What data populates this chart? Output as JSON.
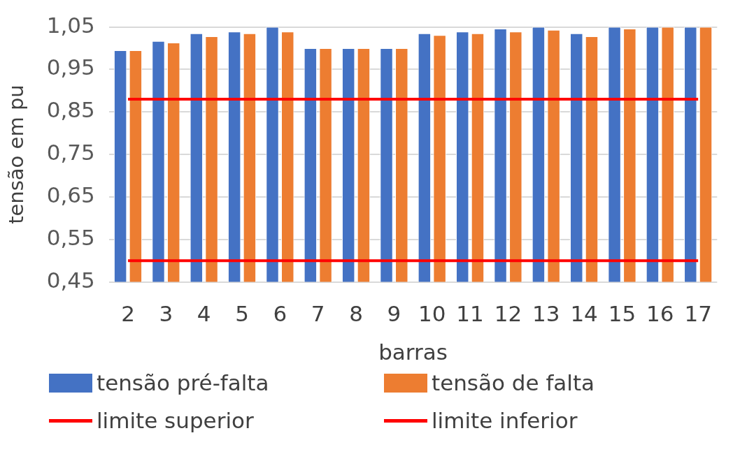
{
  "chart_data": {
    "type": "bar",
    "xlabel": "barras",
    "ylabel": "tensão em pu",
    "categories": [
      "2",
      "3",
      "4",
      "5",
      "6",
      "7",
      "8",
      "9",
      "10",
      "11",
      "12",
      "13",
      "14",
      "15",
      "16",
      "17"
    ],
    "series": [
      {
        "name": "tensão pré-falta",
        "color": "#4472c4",
        "values": [
          0.995,
          1.017,
          1.035,
          1.039,
          1.05,
          1.0,
          1.0,
          1.0,
          1.035,
          1.039,
          1.046,
          1.05,
          1.035,
          1.05,
          1.05,
          1.05
        ]
      },
      {
        "name": "tensão de falta",
        "color": "#ed7d31",
        "values": [
          0.995,
          1.013,
          1.028,
          1.035,
          1.039,
          1.0,
          1.0,
          1.0,
          1.031,
          1.035,
          1.039,
          1.043,
          1.028,
          1.046,
          1.05,
          1.05
        ]
      },
      {
        "name": "limite superior",
        "type": "line",
        "color": "#ff0000",
        "values": [
          0.88,
          0.88,
          0.88,
          0.88,
          0.88,
          0.88,
          0.88,
          0.88,
          0.88,
          0.88,
          0.88,
          0.88,
          0.88,
          0.88,
          0.88,
          0.88
        ]
      },
      {
        "name": "limite inferior",
        "type": "line",
        "color": "#ff0000",
        "values": [
          0.5,
          0.5,
          0.5,
          0.5,
          0.5,
          0.5,
          0.5,
          0.5,
          0.5,
          0.5,
          0.5,
          0.5,
          0.5,
          0.5,
          0.5,
          0.5
        ]
      }
    ],
    "ylim": [
      0.45,
      1.05
    ],
    "yticks": [
      {
        "value": 0.45,
        "label": "0,45"
      },
      {
        "value": 0.55,
        "label": "0,55"
      },
      {
        "value": 0.65,
        "label": "0,65"
      },
      {
        "value": 0.75,
        "label": "0,75"
      },
      {
        "value": 0.85,
        "label": "0,85"
      },
      {
        "value": 0.95,
        "label": "0,95"
      },
      {
        "value": 1.05,
        "label": "1,05"
      }
    ],
    "grid": "y",
    "legend": "bottom",
    "marker": "none"
  }
}
